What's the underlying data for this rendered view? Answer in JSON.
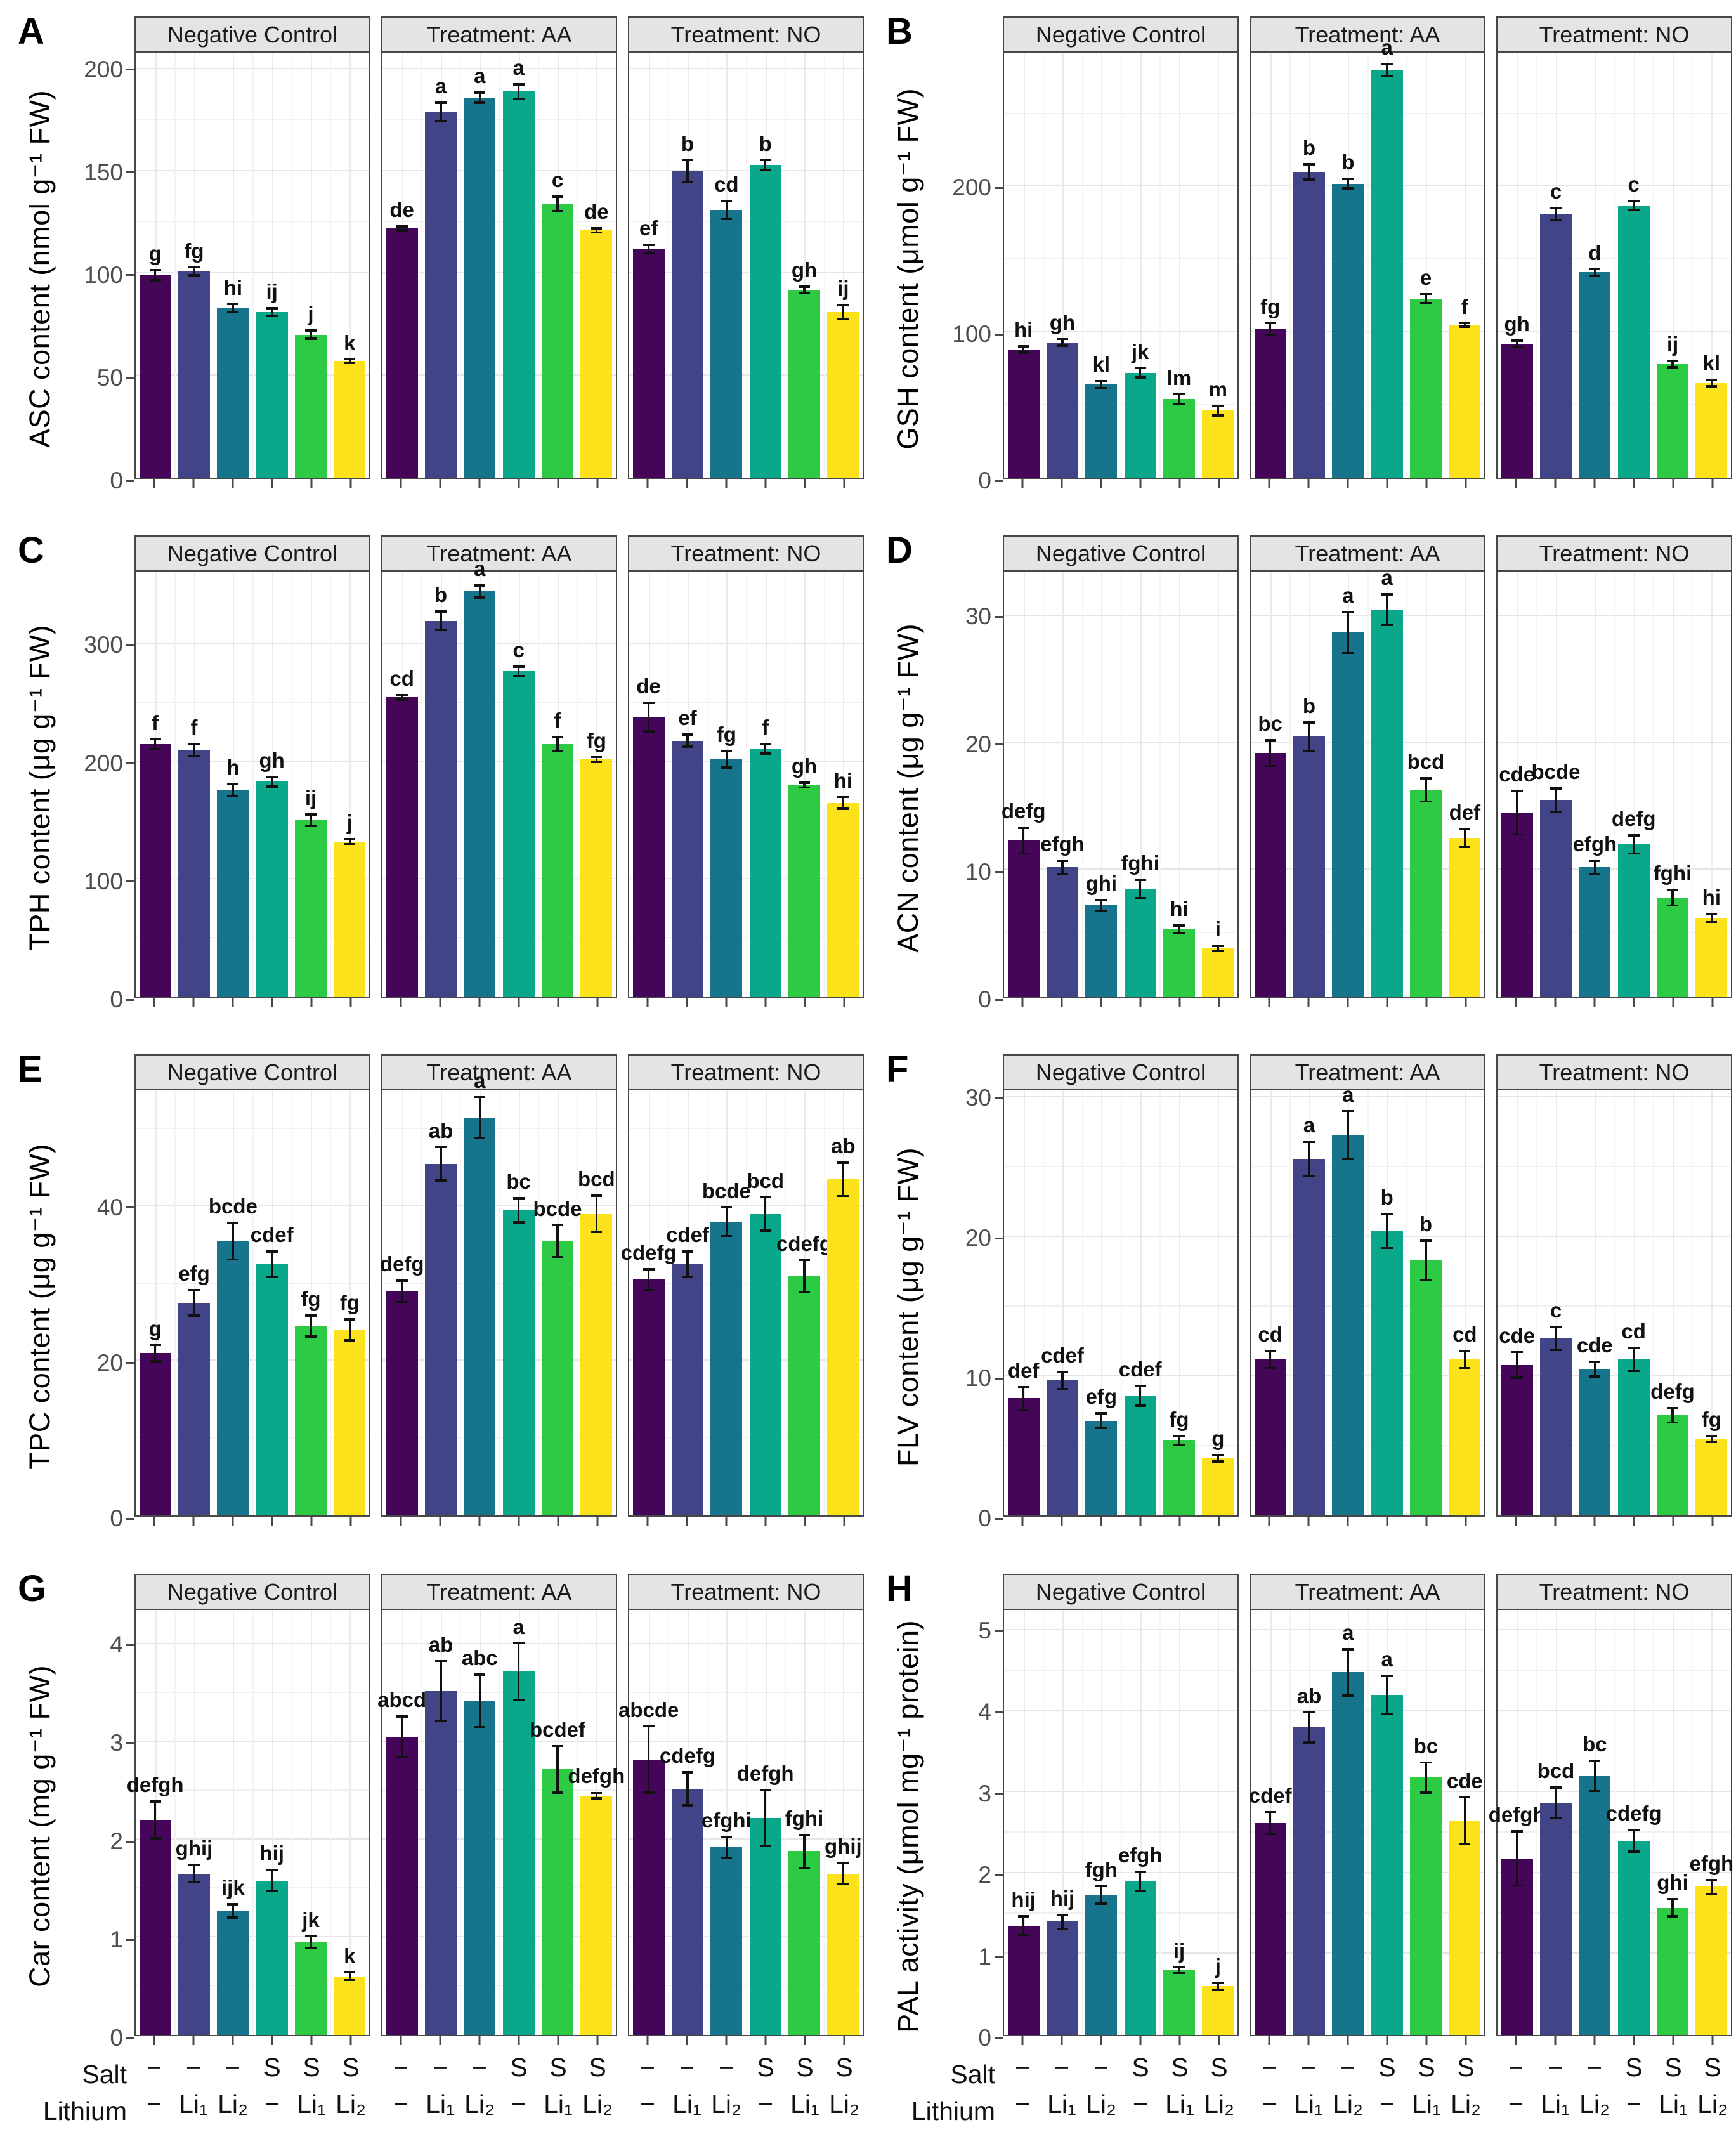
{
  "chart_data": {
    "type": "bar",
    "layout": "2-column by 4-row grid of panels; each panel faceted into three sub-plots sharing a y axis",
    "facet_titles": [
      "Negative Control",
      "Treatment: AA",
      "Treatment: NO"
    ],
    "palette": [
      "#450559",
      "#414487",
      "#16748C",
      "#09A88A",
      "#2CCB43",
      "#FCE21B"
    ],
    "error_bar_color": "#111111",
    "x_axis": {
      "salt_label": "Salt",
      "lithium_label": "Lithium",
      "salt_ticks": [
        "−",
        "−",
        "−",
        "S",
        "S",
        "S"
      ],
      "lithium_ticks": [
        "−",
        "Li₁",
        "Li₂",
        "−",
        "Li₁",
        "Li₂"
      ]
    },
    "panels": [
      {
        "letter": "A",
        "ylabel": "ASC content (nmol g⁻¹ FW)",
        "ymax": 208,
        "yticks": [
          0,
          50,
          100,
          150,
          200
        ],
        "show_xlabels": false,
        "facets": [
          {
            "values": [
              99,
              101,
              83,
              81,
              70,
              57
            ],
            "errors": [
              3,
              2.5,
              2.5,
              2.5,
              2.5,
              1.5
            ],
            "letters": [
              "g",
              "fg",
              "hi",
              "ij",
              "j",
              "k"
            ]
          },
          {
            "values": [
              122,
              179,
              186,
              189,
              134,
              121
            ],
            "errors": [
              1.5,
              5,
              3,
              4,
              4,
              1.5
            ],
            "letters": [
              "de",
              "a",
              "a",
              "a",
              "c",
              "de"
            ]
          },
          {
            "values": [
              112,
              150,
              131,
              153,
              92,
              81
            ],
            "errors": [
              2.5,
              6,
              5,
              3,
              2,
              4
            ],
            "letters": [
              "ef",
              "b",
              "cd",
              "b",
              "gh",
              "ij"
            ]
          }
        ]
      },
      {
        "letter": "B",
        "ylabel": "GSH content (μmol g⁻¹ FW)",
        "ymax": 292,
        "yticks": [
          0,
          100,
          200
        ],
        "show_xlabels": false,
        "facets": [
          {
            "values": [
              88,
              93,
              64,
              72,
              54,
              46
            ],
            "errors": [
              3,
              3,
              3,
              4,
              4,
              4
            ],
            "letters": [
              "hi",
              "gh",
              "kl",
              "jk",
              "lm",
              "m"
            ]
          },
          {
            "values": [
              102,
              210,
              202,
              280,
              123,
              105
            ],
            "errors": [
              5,
              6,
              4,
              5,
              4,
              2
            ],
            "letters": [
              "fg",
              "b",
              "b",
              "a",
              "e",
              "f"
            ]
          },
          {
            "values": [
              92,
              181,
              141,
              187,
              78,
              65
            ],
            "errors": [
              3,
              5,
              3,
              4,
              3,
              3
            ],
            "letters": [
              "gh",
              "c",
              "d",
              "c",
              "ij",
              "kl"
            ]
          }
        ]
      },
      {
        "letter": "C",
        "ylabel": "TPH content (μg g⁻¹ FW)",
        "ymax": 362,
        "yticks": [
          0,
          100,
          200,
          300
        ],
        "show_xlabels": false,
        "facets": [
          {
            "values": [
              215,
              210,
              176,
              183,
              150,
              132
            ],
            "errors": [
              5,
              6,
              6,
              5,
              6,
              3
            ],
            "letters": [
              "f",
              "f",
              "h",
              "gh",
              "ij",
              "j"
            ]
          },
          {
            "values": [
              255,
              320,
              345,
              277,
              215,
              202
            ],
            "errors": [
              3,
              9,
              6,
              5,
              7,
              3
            ],
            "letters": [
              "cd",
              "b",
              "a",
              "c",
              "f",
              "fg"
            ]
          },
          {
            "values": [
              238,
              218,
              202,
              211,
              180,
              165
            ],
            "errors": [
              13,
              6,
              8,
              5,
              3,
              6
            ],
            "letters": [
              "de",
              "ef",
              "fg",
              "f",
              "gh",
              "hi"
            ]
          }
        ]
      },
      {
        "letter": "D",
        "ylabel": "ACN content (μg g⁻¹ FW)",
        "ymax": 33.5,
        "yticks": [
          0,
          10,
          20,
          30
        ],
        "show_xlabels": false,
        "facets": [
          {
            "values": [
              12.3,
              10.2,
              7.2,
              8.5,
              5.3,
              3.8
            ],
            "errors": [
              1.1,
              0.6,
              0.5,
              0.8,
              0.4,
              0.3
            ],
            "letters": [
              "defg",
              "efgh",
              "ghi",
              "fghi",
              "hi",
              "i"
            ]
          },
          {
            "values": [
              19.2,
              20.5,
              28.7,
              30.5,
              16.3,
              12.5
            ],
            "errors": [
              1.1,
              1.2,
              1.7,
              1.3,
              1.0,
              0.8
            ],
            "letters": [
              "bc",
              "b",
              "a",
              "a",
              "bcd",
              "def"
            ]
          },
          {
            "values": [
              14.5,
              15.5,
              10.2,
              12.0,
              7.8,
              6.2
            ],
            "errors": [
              1.8,
              1.0,
              0.6,
              0.8,
              0.7,
              0.4
            ],
            "letters": [
              "cde",
              "bcde",
              "efgh",
              "defg",
              "fghi",
              "hi"
            ]
          }
        ]
      },
      {
        "letter": "E",
        "ylabel": "TPC content (μg g⁻¹ FW)",
        "ymax": 55,
        "yticks": [
          0,
          20,
          40
        ],
        "show_xlabels": false,
        "facets": [
          {
            "values": [
              21,
              27.5,
              35.5,
              32.5,
              24.5,
              24
            ],
            "errors": [
              1.2,
              1.8,
              2.5,
              1.8,
              1.5,
              1.5
            ],
            "letters": [
              "g",
              "efg",
              "bcde",
              "cdef",
              "fg",
              "fg"
            ]
          },
          {
            "values": [
              29,
              45.5,
              51.5,
              39.5,
              35.5,
              39
            ],
            "errors": [
              1.5,
              2.3,
              2.8,
              1.7,
              2.2,
              2.5
            ],
            "letters": [
              "defg",
              "ab",
              "a",
              "bc",
              "bcde",
              "bcd"
            ]
          },
          {
            "values": [
              30.5,
              32.5,
              38,
              39,
              31,
              43.5
            ],
            "errors": [
              1.5,
              1.8,
              2.0,
              2.3,
              2.2,
              2.3
            ],
            "letters": [
              "cdefg",
              "cdef",
              "bcde",
              "bcd",
              "cdefg",
              "ab"
            ]
          }
        ]
      },
      {
        "letter": "F",
        "ylabel": "FLV content (μg g⁻¹ FW)",
        "ymax": 30.5,
        "yticks": [
          0,
          10,
          20,
          30
        ],
        "show_xlabels": false,
        "facets": [
          {
            "values": [
              8.4,
              9.7,
              6.8,
              8.6,
              5.4,
              4.1
            ],
            "errors": [
              0.9,
              0.7,
              0.6,
              0.8,
              0.4,
              0.3
            ],
            "letters": [
              "def",
              "cdef",
              "efg",
              "cdef",
              "fg",
              "g"
            ]
          },
          {
            "values": [
              11.2,
              25.6,
              27.3,
              20.4,
              18.3,
              11.2
            ],
            "errors": [
              0.7,
              1.3,
              1.8,
              1.3,
              1.5,
              0.7
            ],
            "letters": [
              "cd",
              "a",
              "a",
              "b",
              "b",
              "cd"
            ]
          },
          {
            "values": [
              10.8,
              12.7,
              10.5,
              11.2,
              7.2,
              5.5
            ],
            "errors": [
              1.0,
              0.9,
              0.6,
              0.9,
              0.6,
              0.3
            ],
            "letters": [
              "cde",
              "c",
              "cde",
              "cd",
              "defg",
              "fg"
            ]
          }
        ]
      },
      {
        "letter": "G",
        "ylabel": "Car content (mg g⁻¹ FW)",
        "ymax": 4.35,
        "yticks": [
          0,
          1,
          2,
          3,
          4
        ],
        "show_xlabels": true,
        "facets": [
          {
            "values": [
              2.2,
              1.65,
              1.27,
              1.58,
              0.95,
              0.6
            ],
            "errors": [
              0.2,
              0.1,
              0.08,
              0.12,
              0.07,
              0.05
            ],
            "letters": [
              "defgh",
              "ghij",
              "ijk",
              "hij",
              "jk",
              "k"
            ]
          },
          {
            "values": [
              3.05,
              3.52,
              3.42,
              3.72,
              2.72,
              2.45
            ],
            "errors": [
              0.22,
              0.32,
              0.28,
              0.3,
              0.25,
              0.04
            ],
            "letters": [
              "abcd",
              "ab",
              "abc",
              "a",
              "bcdef",
              "defgh"
            ]
          },
          {
            "values": [
              2.82,
              2.52,
              1.92,
              2.22,
              1.88,
              1.65
            ],
            "errors": [
              0.35,
              0.18,
              0.12,
              0.3,
              0.18,
              0.12
            ],
            "letters": [
              "abcde",
              "cdefg",
              "efghi",
              "defgh",
              "fghi",
              "ghij"
            ]
          }
        ]
      },
      {
        "letter": "H",
        "ylabel": "PAL activity (μmol mg⁻¹ protein)",
        "ymax": 5.25,
        "yticks": [
          0,
          1,
          2,
          3,
          4,
          5
        ],
        "show_xlabels": true,
        "facets": [
          {
            "values": [
              1.35,
              1.4,
              1.73,
              1.9,
              0.8,
              0.6
            ],
            "errors": [
              0.13,
              0.1,
              0.12,
              0.13,
              0.05,
              0.06
            ],
            "letters": [
              "hij",
              "hij",
              "fgh",
              "efgh",
              "ij",
              "j"
            ]
          },
          {
            "values": [
              2.62,
              3.8,
              4.48,
              4.2,
              3.18,
              2.65
            ],
            "errors": [
              0.15,
              0.2,
              0.3,
              0.25,
              0.2,
              0.3
            ],
            "letters": [
              "cdef",
              "ab",
              "a",
              "a",
              "bc",
              "cde"
            ]
          },
          {
            "values": [
              2.18,
              2.87,
              3.2,
              2.4,
              1.57,
              1.83
            ],
            "errors": [
              0.35,
              0.2,
              0.2,
              0.15,
              0.12,
              0.1
            ],
            "letters": [
              "defgh",
              "bcd",
              "bc",
              "cdefg",
              "ghi",
              "efgh"
            ]
          }
        ]
      }
    ]
  }
}
